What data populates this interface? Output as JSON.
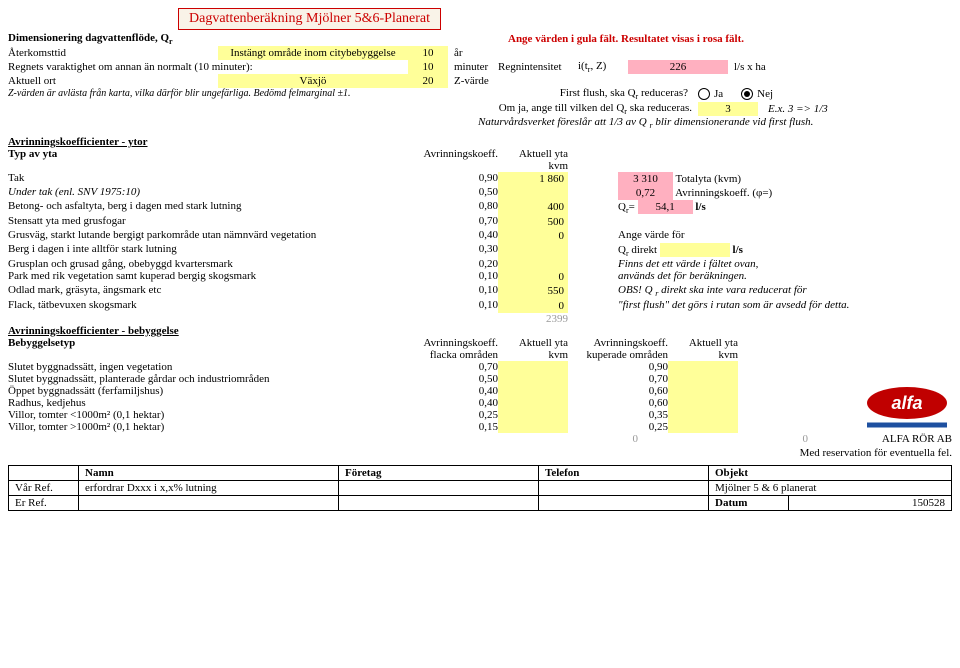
{
  "title": "Dagvattenberäkning Mjölner 5&6-Planerat",
  "banner": "Ange värden i gula fält. Resultatet visas i rosa fält.",
  "dimHeader": "Dimensionering dagvattenflöde, Q",
  "rows": {
    "r1": {
      "l": "Återkomsttid",
      "y": "Instängt område inom citybebyggelse",
      "v": "10",
      "u": "år"
    },
    "r2": {
      "l": "Regnets varaktighet om annan än normalt (10 minuter):",
      "v": "10",
      "u": "minuter",
      "mid": "Regnintensitet",
      "midsym": "i(t",
      "midsym2": ", Z)",
      "pv": "226",
      "pu": "l/s x ha"
    },
    "r3": {
      "l": "Aktuell ort",
      "y": "Växjö",
      "v": "20",
      "u": "Z-värde"
    },
    "note": "Z-värden är avlästa från karta, vilka därför blir ungefärliga. Bedömd felmarginal ±1."
  },
  "flush": {
    "q": "First flush, ska Q",
    "q2": " reduceras?",
    "ja": "Ja",
    "nej": "Nej",
    "l2a": "Om ja, ange till vilken del Q",
    "l2b": " ska reduceras.",
    "v": "3",
    "ex": "E.x. 3 => 1/3",
    "foot": "Naturvårdsverket föreslår att 1/3 av Q ",
    "foot2": " blir dimensionerande vid first flush."
  },
  "ytorHeader": "Avrinningskoefficienter - ytor",
  "th": {
    "typ": "Typ av yta",
    "ak": "Avrinningskoeff.",
    "ay": "Aktuell yta",
    "kvm": "kvm",
    "flacka": "flacka områden",
    "kup": "kuperade områden"
  },
  "ytor": [
    {
      "n": "Tak",
      "k": "0,90",
      "a": "1 860"
    },
    {
      "n": "Under tak (enl. SNV 1975:10)",
      "k": "0,50",
      "a": ""
    },
    {
      "n": "Betong- och asfaltyta, berg i dagen med stark lutning",
      "k": "0,80",
      "a": "400"
    },
    {
      "n": "Stensatt yta med grusfogar",
      "k": "0,70",
      "a": "500"
    },
    {
      "n": "Grusväg, starkt lutande bergigt parkområde utan nämnvärd vegetation",
      "k": "0,40",
      "a": "0"
    },
    {
      "n": "Berg i dagen i inte alltför stark lutning",
      "k": "0,30",
      "a": ""
    },
    {
      "n": "Grusplan och grusad gång, obebyggd kvartersmark",
      "k": "0,20",
      "a": ""
    },
    {
      "n": "Park med rik vegetation samt kuperad bergig skogsmark",
      "k": "0,10",
      "a": "0"
    },
    {
      "n": "Odlad mark, gräsyta, ängsmark etc",
      "k": "0,10",
      "a": "550"
    },
    {
      "n": "Flack, tätbevuxen skogsmark",
      "k": "0,10",
      "a": "0"
    }
  ],
  "side": {
    "tot": "3 310",
    "totL": "Totalyta (kvm)",
    "avk": "0,72",
    "avkL": "Avrinningskoeff. (φ=)",
    "qrL": "Q",
    "qr": "54,1",
    "qrU": "l/s",
    "ange": "Ange värde för",
    "qdir": "Q",
    "qdir2": " direkt",
    "qdirU": "l/s",
    "finns": "Finns det ett värde i fältet ovan,",
    "anv": "används det för beräkningen.",
    "obs": "OBS! Q ",
    "obs2": " direkt ska inte vara reducerat för",
    "ff": "\"first flush\" det görs i rutan som är avsedd för detta."
  },
  "sum2399": "2399",
  "bebHeader": "Avrinningskoefficienter - bebyggelse",
  "bebTyp": "Bebyggelsetyp",
  "beb": [
    {
      "n": "Slutet byggnadssätt, ingen vegetation",
      "k1": "0,70",
      "k2": "0,90"
    },
    {
      "n": "Slutet byggnadssätt, planterade gårdar och industriområden",
      "k1": "0,50",
      "k2": "0,70"
    },
    {
      "n": "Öppet byggnadssätt (ferfamiljshus)",
      "k1": "0,40",
      "k2": "0,60"
    },
    {
      "n": "Radhus, kedjehus",
      "k1": "0,40",
      "k2": "0,60"
    },
    {
      "n": "Villor, tomter <1000m² (0,1 hektar)",
      "k1": "0,25",
      "k2": "0,35"
    },
    {
      "n": "Villor, tomter >1000m² (0,1 hektar)",
      "k1": "0,15",
      "k2": "0,25"
    }
  ],
  "zero": "0",
  "company": "ALFA RÖR AB",
  "disclaimer": "Med reservation för eventuella fel.",
  "ref": {
    "h": {
      "namn": "Namn",
      "foretag": "Företag",
      "tel": "Telefon",
      "obj": "Objekt"
    },
    "var": "Vår Ref.",
    "varv": "erfordrar Dxxx i x,x% lutning",
    "er": "Er Ref.",
    "obj": "Mjölner 5 & 6 planerat",
    "datumL": "Datum",
    "datum": "150528"
  },
  "colors": {
    "yellow": "#ffff99",
    "pink": "#ffb0c0",
    "red": "#c00"
  }
}
